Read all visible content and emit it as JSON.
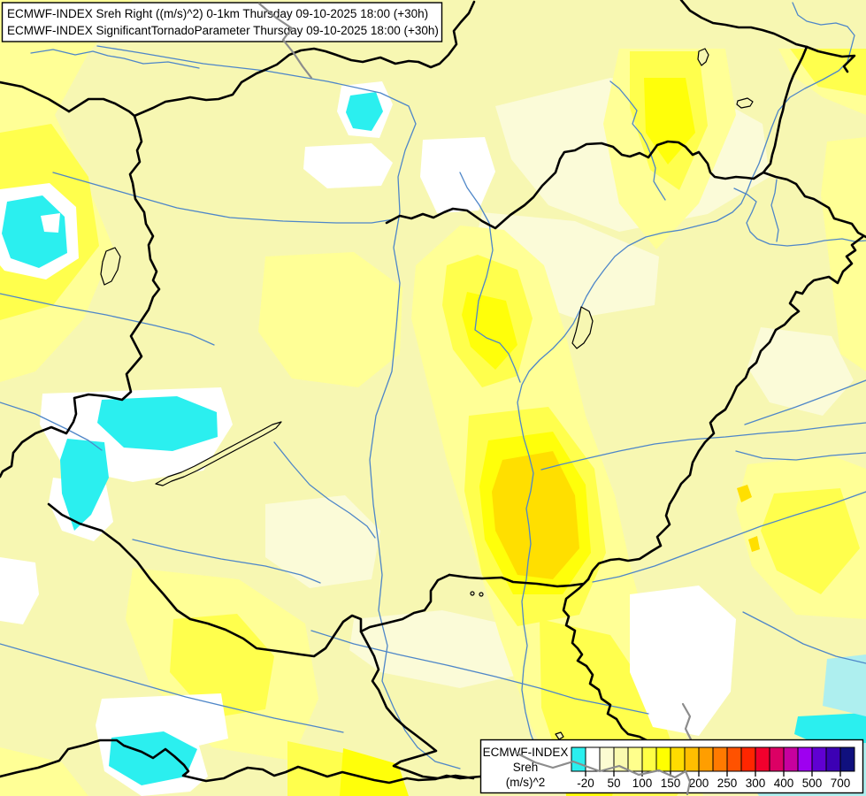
{
  "title_box": {
    "line1": "ECMWF-INDEX Sreh Right ((m/s)^2) 0-1km Thursday 09-10-2025 18:00 (+30h)",
    "line2": "ECMWF-INDEX SignificantTornadoParameter Thursday 09-10-2025 18:00 (+30h)"
  },
  "legend": {
    "title_line1": "ECMWF-INDEX",
    "title_line2": "Sreh",
    "title_line3": "(m/s)^2",
    "tick_labels": [
      "-20",
      "50",
      "100",
      "150",
      "200",
      "250",
      "300",
      "400",
      "500",
      "700"
    ],
    "tick_cell_boundaries": [
      1,
      3,
      5,
      7,
      9,
      11,
      13,
      15,
      17,
      19
    ],
    "cell_colors": [
      "#2BEFEF",
      "#FFFFFF",
      "#FCFCD2",
      "#FAFAAF",
      "#FFFF8C",
      "#FFFF46",
      "#FFFF00",
      "#FFDC00",
      "#FFBE00",
      "#FF9E00",
      "#FF7A00",
      "#FF5200",
      "#FF2600",
      "#F2002D",
      "#DC0064",
      "#C7009E",
      "#9E00F0",
      "#6000D2",
      "#3C00B4",
      "#10107E"
    ]
  },
  "map_palette": {
    "background_pale_yellow": "#F7F7B2",
    "cream": "#FBFBD8",
    "medium_yellow": "#FFFF96",
    "bright_yellow": "#FFFF4D",
    "vivid_yellow": "#FFFF0A",
    "gold": "#FFDF00",
    "white_patch": "#FFFFFF",
    "cyan_patch": "#2BEFEF",
    "light_cyan_patch": "#AEEFEF",
    "border_line": "#000000",
    "river_line": "#4E86C8",
    "gray_line": "#8C8C8C"
  }
}
